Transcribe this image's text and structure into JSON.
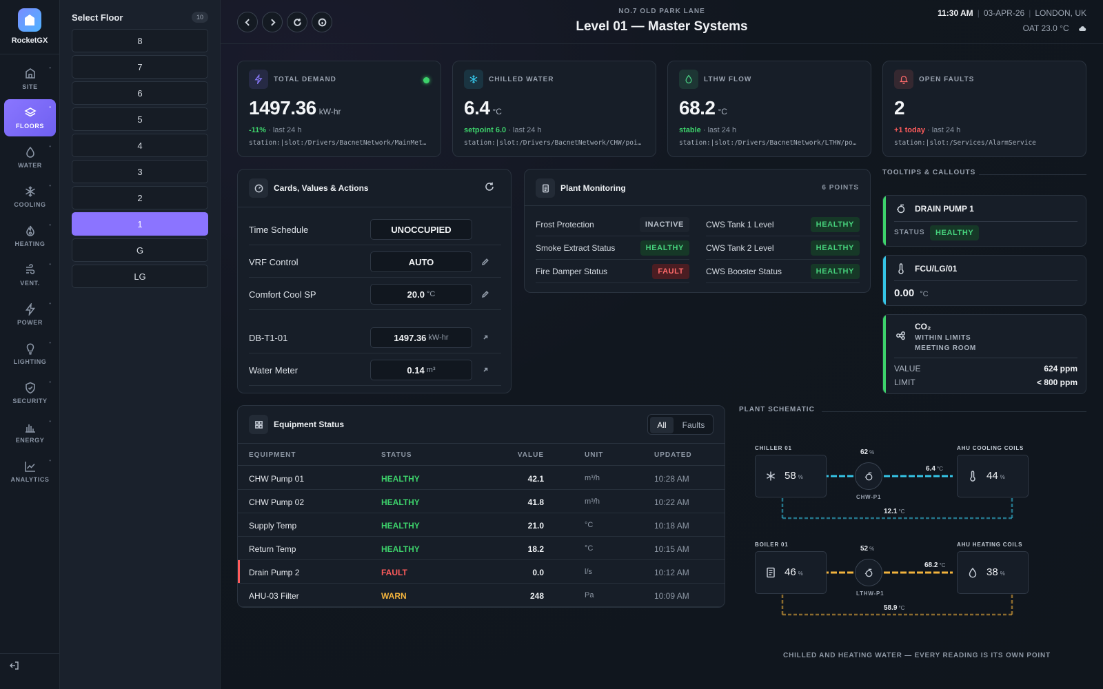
{
  "app": {
    "name": "RocketGX"
  },
  "sidebar": {
    "items": [
      {
        "label": "SITE",
        "icon": "building-icon"
      },
      {
        "label": "FLOORS",
        "icon": "layers-icon",
        "active": true
      },
      {
        "label": "WATER",
        "icon": "droplet-icon"
      },
      {
        "label": "COOLING",
        "icon": "snowflake-icon"
      },
      {
        "label": "HEATING",
        "icon": "flame-icon"
      },
      {
        "label": "VENT.",
        "icon": "wind-icon"
      },
      {
        "label": "POWER",
        "icon": "bolt-icon"
      },
      {
        "label": "LIGHTING",
        "icon": "bulb-icon"
      },
      {
        "label": "SECURITY",
        "icon": "shield-icon"
      },
      {
        "label": "ENERGY",
        "icon": "bar-chart-icon"
      },
      {
        "label": "ANALYTICS",
        "icon": "line-chart-icon"
      }
    ]
  },
  "floors": {
    "title": "Select Floor",
    "count": "10",
    "list": [
      "8",
      "7",
      "6",
      "5",
      "4",
      "3",
      "2",
      "1",
      "G",
      "LG"
    ],
    "selected": "1"
  },
  "header": {
    "building": "NO.7 OLD PARK LANE",
    "title": "Level 01 — Master Systems",
    "time": "11:30 AM",
    "date": "03-APR-26",
    "location": "LONDON, UK",
    "oat": "OAT 23.0 °C",
    "weather_icon": "cloud-icon"
  },
  "kpis": [
    {
      "label": "TOTAL DEMAND",
      "value": "1497.36",
      "unit": "kW-hr",
      "trend": "-11%",
      "trend_color": "#3dd26b",
      "trend_suffix": "· last 24 h",
      "path": "station:|slot:/Drivers/BacnetNetwork/MainMeter/points/Demand",
      "icon": "bolt-icon",
      "accent": "#8b7bff",
      "live": true
    },
    {
      "label": "CHILLED WATER",
      "value": "6.4",
      "unit": "°C",
      "trend": "setpoint 6.0",
      "trend_color": "#3dd26b",
      "trend_suffix": "· last 24 h",
      "path": "station:|slot:/Drivers/BacnetNetwork/CHW/points/SupplyTemp",
      "icon": "snowflake-icon",
      "accent": "#35c4e6"
    },
    {
      "label": "LTHW FLOW",
      "value": "68.2",
      "unit": "°C",
      "trend": "stable",
      "trend_color": "#3dd26b",
      "trend_suffix": "· last 24 h",
      "path": "station:|slot:/Drivers/BacnetNetwork/LTHW/points/FlowTemp",
      "icon": "droplet-icon",
      "accent": "#4bd486"
    },
    {
      "label": "OPEN FAULTS",
      "value": "2",
      "unit": "",
      "trend": "+1 today",
      "trend_color": "#ff5c5c",
      "trend_suffix": "· last 24 h",
      "path": "station:|slot:/Services/AlarmService",
      "icon": "bell-icon",
      "accent": "#ff6b6b"
    }
  ],
  "cards_values": {
    "title": "Cards, Values & Actions",
    "rows": [
      {
        "label": "Time Schedule",
        "value": "UNOCCUPIED",
        "unit": "",
        "action": ""
      },
      {
        "label": "VRF Control",
        "value": "AUTO",
        "unit": "",
        "action": "edit"
      },
      {
        "label": "Comfort Cool SP",
        "value": "20.0",
        "unit": "°C",
        "action": "edit"
      },
      {
        "label": "DB-T1-01",
        "value": "1497.36",
        "unit": "kW-hr",
        "action": "link"
      },
      {
        "label": "Water Meter",
        "value": "0.14",
        "unit": "m³",
        "action": "link"
      }
    ]
  },
  "plant_monitoring": {
    "title": "Plant Monitoring",
    "points": "6 POINTS",
    "left": [
      {
        "label": "Frost Protection",
        "status": "INACTIVE",
        "kind": "off"
      },
      {
        "label": "Smoke Extract Status",
        "status": "HEALTHY",
        "kind": "ok"
      },
      {
        "label": "Fire Damper Status",
        "status": "FAULT",
        "kind": "bad"
      }
    ],
    "right": [
      {
        "label": "CWS Tank 1 Level",
        "status": "HEALTHY",
        "kind": "ok"
      },
      {
        "label": "CWS Tank 2 Level",
        "status": "HEALTHY",
        "kind": "ok"
      },
      {
        "label": "CWS Booster Status",
        "status": "HEALTHY",
        "kind": "ok"
      }
    ]
  },
  "tooltips": {
    "title": "TOOLTIPS & CALLOUTS",
    "drain_pump": {
      "title": "DRAIN PUMP 1",
      "status_label": "STATUS",
      "status": "HEALTHY",
      "accent": "#3dd26b"
    },
    "fcu": {
      "title": "FCU/LG/01",
      "value": "0.00",
      "unit": "°C",
      "accent": "#35c4e6"
    },
    "co2": {
      "title": "CO₂",
      "line1": "WITHIN LIMITS",
      "line2": "MEETING ROOM",
      "value_label": "VALUE",
      "value": "624 ppm",
      "limit_label": "LIMIT",
      "limit": "< 800 ppm",
      "accent": "#3dd26b"
    }
  },
  "equipment": {
    "title": "Equipment Status",
    "filters": [
      "All",
      "Faults"
    ],
    "active_filter": "All",
    "columns": [
      "EQUIPMENT",
      "STATUS",
      "VALUE",
      "UNIT",
      "UPDATED"
    ],
    "rows": [
      {
        "name": "CHW Pump 01",
        "status": "HEALTHY",
        "value": "42.1",
        "unit": "m³/h",
        "updated": "10:28 AM"
      },
      {
        "name": "CHW Pump 02",
        "status": "HEALTHY",
        "value": "41.8",
        "unit": "m³/h",
        "updated": "10:22 AM"
      },
      {
        "name": "Supply Temp",
        "status": "HEALTHY",
        "value": "21.0",
        "unit": "°C",
        "updated": "10:18 AM"
      },
      {
        "name": "Return Temp",
        "status": "HEALTHY",
        "value": "18.2",
        "unit": "°C",
        "updated": "10:15 AM"
      },
      {
        "name": "Drain Pump 2",
        "status": "FAULT",
        "value": "0.0",
        "unit": "l/s",
        "updated": "10:12 AM"
      },
      {
        "name": "AHU-03 Filter",
        "status": "WARN",
        "value": "248",
        "unit": "Pa",
        "updated": "10:09 AM"
      }
    ],
    "status_colors": {
      "HEALTHY": "#3dd26b",
      "FAULT": "#ff5c5c",
      "WARN": "#f2b33d"
    }
  },
  "schematic": {
    "title": "PLANT SCHEMATIC",
    "chiller": {
      "label": "CHILLER 01",
      "value": "58",
      "unit": "%"
    },
    "chw_pump": {
      "label": "CHW-P1",
      "value": "62",
      "unit": "%"
    },
    "chw_supply": {
      "value": "6.4",
      "unit": "°C"
    },
    "chw_return": {
      "value": "12.1",
      "unit": "°C"
    },
    "ahu_cool": {
      "label": "AHU COOLING COILS",
      "value": "44",
      "unit": "%"
    },
    "boiler": {
      "label": "BOILER 01",
      "value": "46",
      "unit": "%"
    },
    "lthw_pump": {
      "label": "LTHW-P1",
      "value": "52",
      "unit": "%"
    },
    "lthw_flow": {
      "value": "68.2",
      "unit": "°C"
    },
    "lthw_return": {
      "value": "58.9",
      "unit": "°C"
    },
    "ahu_heat": {
      "label": "AHU HEATING COILS",
      "value": "38",
      "unit": "%"
    },
    "caption": "CHILLED AND HEATING WATER — EVERY READING IS ITS OWN POINT",
    "cool_color": "#35c4e6",
    "heat_color": "#f2b33d"
  }
}
